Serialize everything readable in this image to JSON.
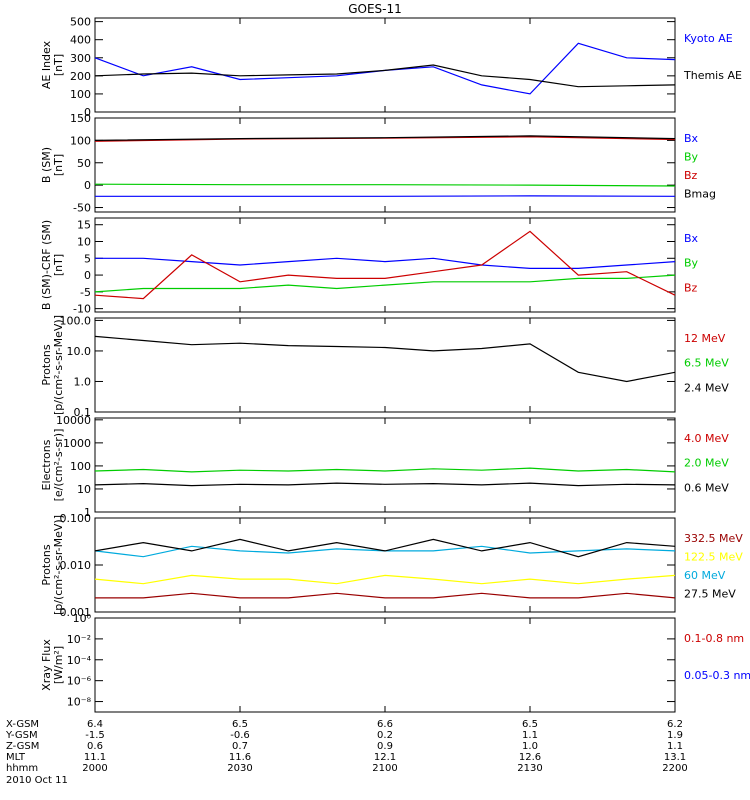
{
  "title": "GOES-11",
  "colors": {
    "black": "#000000",
    "blue": "#0000ff",
    "green": "#00cc00",
    "red": "#cc0000",
    "darkred": "#990000",
    "yellow": "#ffff00",
    "cyan": "#00aadd"
  },
  "footer": {
    "rows": [
      {
        "label": "X-GSM",
        "values": [
          "6.4",
          "6.5",
          "6.6",
          "6.5",
          "6.2"
        ]
      },
      {
        "label": "Y-GSM",
        "values": [
          "-1.5",
          "-0.6",
          "0.2",
          "1.1",
          "1.9"
        ]
      },
      {
        "label": "Z-GSM",
        "values": [
          "0.6",
          "0.7",
          "0.9",
          "1.0",
          "1.1"
        ]
      },
      {
        "label": "MLT",
        "values": [
          "11.1",
          "11.6",
          "12.1",
          "12.6",
          "13.1"
        ]
      },
      {
        "label": "hhmm",
        "values": [
          "2000",
          "2030",
          "2100",
          "2130",
          "2200"
        ]
      }
    ],
    "date": "2010 Oct 11"
  },
  "chart_data": [
    {
      "type": "line",
      "ylabel": "AE Index\n[nT]",
      "scale": "linear",
      "ylim": [
        0,
        520
      ],
      "yticks": [
        "0",
        "100",
        "200",
        "300",
        "400",
        "500"
      ],
      "ytick_values": [
        0,
        100,
        200,
        300,
        400,
        500
      ],
      "x": [
        2000,
        2010,
        2020,
        2030,
        2040,
        2050,
        2100,
        2110,
        2120,
        2130,
        2140,
        2150,
        2200
      ],
      "series": [
        {
          "name": "Kyoto AE",
          "color": "#0000ff",
          "values": [
            300,
            200,
            250,
            180,
            190,
            200,
            230,
            250,
            150,
            100,
            380,
            300,
            290
          ]
        },
        {
          "name": "Themis AE",
          "color": "#000000",
          "values": [
            200,
            210,
            215,
            200,
            205,
            210,
            230,
            260,
            200,
            180,
            140,
            145,
            150
          ]
        }
      ]
    },
    {
      "type": "line",
      "ylabel": "B (SM)\n[nT]",
      "scale": "linear",
      "ylim": [
        -60,
        150
      ],
      "yticks": [
        "-50",
        "0",
        "50",
        "100",
        "150"
      ],
      "ytick_values": [
        -50,
        0,
        50,
        100,
        150
      ],
      "x": [
        2000,
        2030,
        2100,
        2130,
        2200
      ],
      "series": [
        {
          "name": "Bx",
          "color": "#0000ff",
          "values": [
            -25,
            -25,
            -25,
            -24,
            -25
          ]
        },
        {
          "name": "By",
          "color": "#00cc00",
          "values": [
            2,
            1,
            1,
            0,
            -2
          ]
        },
        {
          "name": "Bz",
          "color": "#cc0000",
          "values": [
            98,
            103,
            105,
            108,
            102
          ]
        },
        {
          "name": "Bmag",
          "color": "#000000",
          "values": [
            100,
            104,
            106,
            110,
            104
          ]
        }
      ]
    },
    {
      "type": "line",
      "ylabel": "B (SM)-CRF (SM)\n[nT]",
      "scale": "linear",
      "ylim": [
        -11,
        17
      ],
      "yticks": [
        "-10",
        "-5",
        "0",
        "5",
        "10",
        "15"
      ],
      "ytick_values": [
        -10,
        -5,
        0,
        5,
        10,
        15
      ],
      "x": [
        2000,
        2010,
        2020,
        2030,
        2040,
        2050,
        2100,
        2110,
        2120,
        2130,
        2140,
        2150,
        2200
      ],
      "series": [
        {
          "name": "Bx",
          "color": "#0000ff",
          "values": [
            5,
            5,
            4,
            3,
            4,
            5,
            4,
            5,
            3,
            2,
            2,
            3,
            4
          ]
        },
        {
          "name": "By",
          "color": "#00cc00",
          "values": [
            -5,
            -4,
            -4,
            -4,
            -3,
            -4,
            -3,
            -2,
            -2,
            -2,
            -1,
            -1,
            0
          ]
        },
        {
          "name": "Bz",
          "color": "#cc0000",
          "values": [
            -6,
            -7,
            6,
            -2,
            0,
            -1,
            -1,
            1,
            3,
            13,
            0,
            1,
            -6
          ]
        }
      ]
    },
    {
      "type": "line",
      "ylabel": "Protons\n[p/(cm²-s-sr-MeV)]",
      "scale": "log",
      "ylim": [
        0.1,
        120
      ],
      "yticks": [
        "0.1",
        "1.0",
        "10.0",
        "100.0"
      ],
      "ytick_values": [
        0.1,
        1,
        10,
        100
      ],
      "x": [
        2000,
        2010,
        2020,
        2030,
        2040,
        2050,
        2100,
        2110,
        2120,
        2130,
        2140,
        2150,
        2200
      ],
      "series": [
        {
          "name": "12 MeV",
          "color": "#cc0000",
          "values": [
            null,
            null,
            null,
            null,
            null,
            null,
            null,
            null,
            null,
            null,
            null,
            null,
            null
          ]
        },
        {
          "name": "6.5 MeV",
          "color": "#00cc00",
          "values": [
            null,
            null,
            null,
            null,
            null,
            null,
            null,
            null,
            null,
            null,
            null,
            null,
            null
          ]
        },
        {
          "name": "2.4 MeV",
          "color": "#000000",
          "values": [
            30,
            22,
            16,
            18,
            15,
            14,
            13,
            10,
            12,
            17,
            2,
            1,
            2
          ]
        }
      ]
    },
    {
      "type": "line",
      "ylabel": "Electrons\n[e/(cm²-s-sr)]",
      "scale": "log",
      "ylim": [
        1,
        12000
      ],
      "yticks": [
        "1",
        "10",
        "100",
        "1000",
        "10000"
      ],
      "ytick_values": [
        1,
        10,
        100,
        1000,
        10000
      ],
      "x": [
        2000,
        2010,
        2020,
        2030,
        2040,
        2050,
        2100,
        2110,
        2120,
        2130,
        2140,
        2150,
        2200
      ],
      "series": [
        {
          "name": "4.0 MeV",
          "color": "#cc0000",
          "values": [
            null,
            null,
            null,
            null,
            null,
            null,
            null,
            null,
            null,
            null,
            null,
            null,
            null
          ]
        },
        {
          "name": "2.0 MeV",
          "color": "#00cc00",
          "values": [
            60,
            70,
            55,
            65,
            60,
            70,
            60,
            75,
            65,
            80,
            60,
            70,
            55
          ]
        },
        {
          "name": "0.6 MeV",
          "color": "#000000",
          "values": [
            15,
            17,
            14,
            16,
            15,
            18,
            16,
            17,
            15,
            18,
            14,
            16,
            15
          ]
        }
      ]
    },
    {
      "type": "line",
      "ylabel": "Protons\n[p/(cm²-s-sr-MeV)]",
      "scale": "log",
      "ylim": [
        0.001,
        0.1
      ],
      "yticks": [
        "0.001",
        "0.010",
        "0.100"
      ],
      "ytick_values": [
        0.001,
        0.01,
        0.1
      ],
      "x": [
        2000,
        2010,
        2020,
        2030,
        2040,
        2050,
        2100,
        2110,
        2120,
        2130,
        2140,
        2150,
        2200
      ],
      "series": [
        {
          "name": "332.5 MeV",
          "color": "#990000",
          "values": [
            0.002,
            0.002,
            0.0025,
            0.002,
            0.002,
            0.0025,
            0.002,
            0.002,
            0.0025,
            0.002,
            0.002,
            0.0025,
            0.002
          ]
        },
        {
          "name": "122.5 MeV",
          "color": "#ffff00",
          "values": [
            0.005,
            0.004,
            0.006,
            0.005,
            0.005,
            0.004,
            0.006,
            0.005,
            0.004,
            0.005,
            0.004,
            0.005,
            0.006
          ]
        },
        {
          "name": "60 MeV",
          "color": "#00aadd",
          "values": [
            0.02,
            0.015,
            0.025,
            0.02,
            0.018,
            0.022,
            0.02,
            0.02,
            0.025,
            0.018,
            0.02,
            0.022,
            0.02
          ]
        },
        {
          "name": "27.5 MeV",
          "color": "#000000",
          "values": [
            0.02,
            0.03,
            0.02,
            0.035,
            0.02,
            0.03,
            0.02,
            0.035,
            0.02,
            0.03,
            0.015,
            0.03,
            0.025
          ]
        }
      ]
    },
    {
      "type": "line",
      "ylabel": "Xray Flux\n[W/m²]",
      "scale": "log",
      "ylim": [
        1e-09,
        1
      ],
      "yticks": [
        "10⁰",
        "10⁻²",
        "10⁻⁴",
        "10⁻⁶",
        "10⁻⁸"
      ],
      "ytick_values": [
        1,
        0.01,
        0.0001,
        1e-06,
        1e-08
      ],
      "x": [
        2000,
        2030,
        2100,
        2130,
        2200
      ],
      "series": [
        {
          "name": "0.1-0.8 nm",
          "color": "#cc0000",
          "values": [
            null,
            null,
            null,
            null,
            null
          ]
        },
        {
          "name": "0.05-0.3 nm",
          "color": "#0000ff",
          "values": [
            null,
            null,
            null,
            null,
            null
          ]
        }
      ]
    }
  ]
}
